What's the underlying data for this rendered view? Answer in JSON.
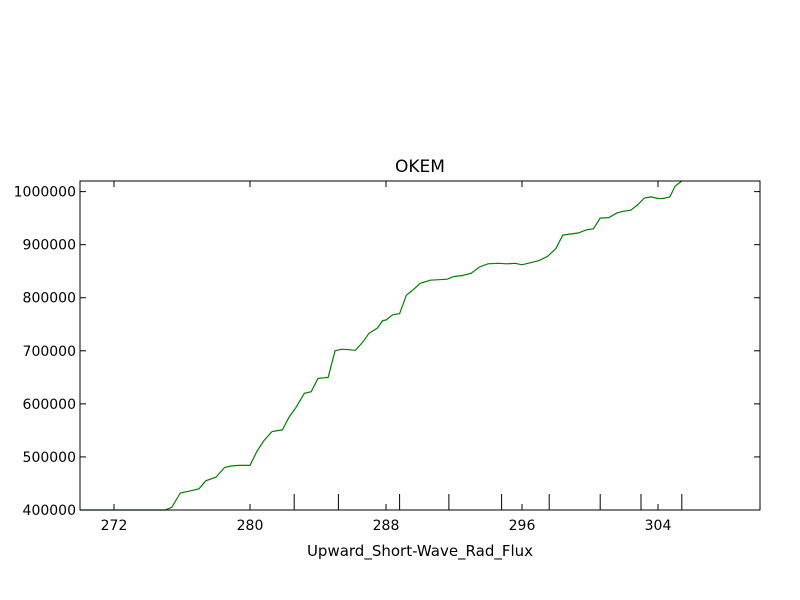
{
  "chart_data": {
    "type": "line",
    "title": "OKEM",
    "xlabel": "Upward_Short-Wave_Rad_Flux",
    "ylabel": "",
    "xlim": [
      270,
      310
    ],
    "ylim": [
      400000,
      1020000
    ],
    "x_ticks": [
      272,
      280,
      288,
      296,
      304
    ],
    "x_tick_labels": [
      "272",
      "280",
      "288",
      "296",
      "304"
    ],
    "y_ticks": [
      400000,
      500000,
      600000,
      700000,
      800000,
      900000,
      1000000
    ],
    "y_tick_labels": [
      "400000",
      "500000",
      "600000",
      "700000",
      "800000",
      "900000",
      "1000000"
    ],
    "grid": false,
    "legend": "none",
    "series": [
      {
        "color": "#008000",
        "x": [
          270.0,
          275.0,
          275.4,
          275.9,
          276.6,
          277.0,
          277.4,
          278.0,
          278.5,
          278.9,
          279.3,
          280.0,
          280.4,
          280.8,
          281.3,
          281.9,
          282.3,
          282.7,
          283.2,
          283.6,
          284.0,
          284.6,
          285.0,
          285.4,
          285.8,
          286.2,
          286.6,
          287.0,
          287.5,
          287.8,
          288.0,
          288.4,
          288.8,
          289.2,
          289.6,
          290.0,
          290.6,
          291.1,
          291.6,
          292.0,
          292.5,
          293.0,
          293.5,
          294.0,
          294.6,
          295.1,
          295.6,
          296.0,
          296.5,
          297.0,
          297.5,
          298.0,
          298.4,
          298.8,
          299.3,
          299.8,
          300.2,
          300.6,
          301.1,
          301.6,
          302.0,
          302.4,
          302.8,
          303.2,
          303.6,
          304.0,
          304.3,
          304.7,
          305.0,
          305.4
        ],
        "y": [
          398000,
          398000,
          405000,
          432000,
          437000,
          440000,
          455000,
          462000,
          480000,
          483000,
          484000,
          484000,
          510000,
          530000,
          548000,
          551000,
          575000,
          593000,
          620000,
          623000,
          648000,
          650000,
          700000,
          703000,
          702000,
          701000,
          715000,
          733000,
          743000,
          757000,
          758000,
          768000,
          770000,
          805000,
          815000,
          827000,
          833000,
          834000,
          835000,
          840000,
          842000,
          846000,
          858000,
          864000,
          865000,
          864000,
          865000,
          862000,
          866000,
          870000,
          878000,
          893000,
          918000,
          920000,
          922000,
          928000,
          930000,
          950000,
          951000,
          960000,
          963000,
          965000,
          975000,
          988000,
          990000,
          987000,
          987000,
          990000,
          1010000,
          1022000
        ]
      }
    ]
  }
}
